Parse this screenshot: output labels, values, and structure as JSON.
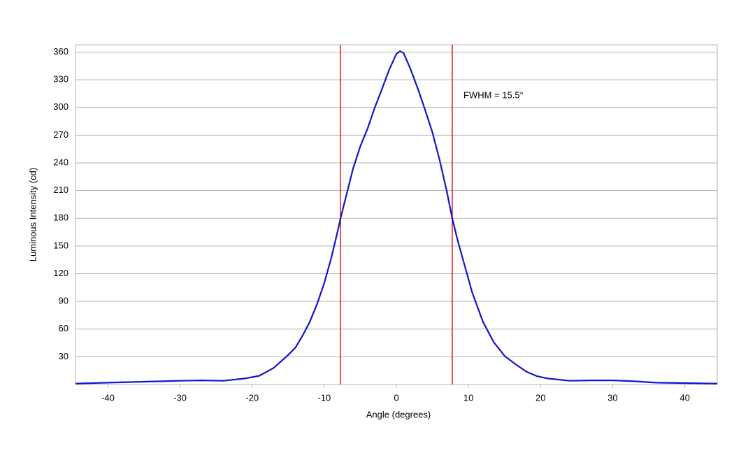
{
  "chart_data": {
    "type": "line",
    "x_label": "Angle (degrees)",
    "y_label": "Luminous Intensity (cd)",
    "annotation": "FWHM = 15.5°",
    "xlim": [
      -44.5,
      44.5
    ],
    "ylim": [
      0,
      368
    ],
    "xticks": [
      -40,
      -30,
      -20,
      -10,
      0,
      10,
      20,
      30,
      40
    ],
    "yticks": [
      30,
      60,
      90,
      120,
      150,
      180,
      210,
      240,
      270,
      300,
      330,
      360
    ],
    "grid": true,
    "vlines": [
      -7.75,
      7.75
    ],
    "vline_color": "#e8141b",
    "x": [
      -44.5,
      -40,
      -35,
      -30,
      -27,
      -24,
      -21,
      -19,
      -17,
      -15,
      -14,
      -13,
      -12,
      -11,
      -10,
      -9,
      -8,
      -7.75,
      -7,
      -6,
      -5,
      -4,
      -3,
      -2,
      -1,
      0,
      0.5,
      1,
      2,
      3,
      4,
      5,
      6,
      7,
      7.75,
      8.5,
      9.5,
      10.5,
      12,
      13.5,
      15,
      16.5,
      18,
      19.5,
      21,
      24,
      27,
      30,
      33,
      36,
      40,
      44.5
    ],
    "series": [
      {
        "name": "Luminous Intensity",
        "color": "#1414c8",
        "values": [
          1,
          2,
          3,
          4,
          4.5,
          4,
          6.5,
          9.5,
          18,
          32,
          40,
          53,
          68,
          87,
          110,
          138,
          171,
          180,
          203,
          234,
          258,
          277,
          300,
          320,
          341,
          358,
          361,
          359,
          341,
          320,
          297,
          273,
          243,
          209,
          180,
          156,
          128,
          100,
          68,
          46,
          31,
          22,
          14,
          9,
          6.5,
          4,
          4.5,
          4.5,
          3.5,
          2,
          1.5,
          1
        ]
      }
    ]
  }
}
